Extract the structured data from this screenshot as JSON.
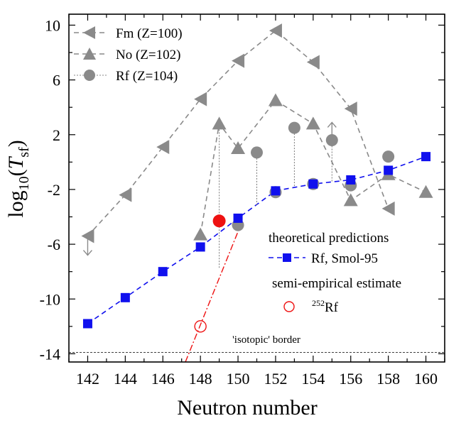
{
  "chart_data": {
    "type": "scatter",
    "xlabel": "Neutron number",
    "ylabel_main": "log",
    "ylabel_sub": "10",
    "ylabel_var": "T",
    "ylabel_var_sub": "sf",
    "xlim": [
      141,
      161
    ],
    "ylim": [
      -14.6,
      10.8
    ],
    "xticks": [
      142,
      144,
      146,
      148,
      150,
      152,
      154,
      156,
      158,
      160
    ],
    "yticks": [
      10,
      6,
      2,
      -2,
      -6,
      -10,
      -14
    ],
    "ytick_labels": [
      "10",
      "6",
      "2",
      "-2",
      "-6",
      "-10",
      "-14"
    ],
    "series": [
      {
        "name": "Fm (Z=100)",
        "marker": "left-triangle",
        "color": "#8a8a8a",
        "x": [
          142,
          144,
          146,
          148,
          150,
          152,
          154,
          156,
          158
        ],
        "y": [
          -5.4,
          -2.4,
          1.1,
          4.6,
          7.4,
          9.6,
          7.3,
          3.9,
          -3.4
        ]
      },
      {
        "name": "No (Z=102)",
        "marker": "triangle",
        "color": "#8a8a8a",
        "x": [
          148,
          149,
          150,
          152,
          154,
          156,
          158,
          160
        ],
        "y": [
          -5.3,
          2.8,
          1.0,
          4.5,
          2.8,
          -2.8,
          -0.9,
          -2.2
        ]
      },
      {
        "name": "Rf  (Z=104)",
        "marker": "circle",
        "color": "#8a8a8a",
        "x": [
          150,
          151,
          152,
          153,
          154,
          155,
          156,
          158
        ],
        "y": [
          -4.6,
          0.7,
          -2.2,
          2.5,
          -1.6,
          1.6,
          -1.7,
          0.4
        ]
      },
      {
        "name": "Rf, Smol-95",
        "marker": "square",
        "color": "#1010ee",
        "x": [
          142,
          144,
          146,
          148,
          150,
          152,
          154,
          156,
          158,
          160
        ],
        "y": [
          -11.8,
          -9.9,
          -8.0,
          -6.2,
          -4.1,
          -2.1,
          -1.6,
          -1.3,
          -0.6,
          0.4
        ]
      },
      {
        "name": "252Rf",
        "marker": "open-circle",
        "color": "#ee1111",
        "x": [
          148
        ],
        "y": [
          -12.0
        ]
      },
      {
        "name": "Rf observed",
        "marker": "filled-circle",
        "color": "#ee1111",
        "x": [
          149
        ],
        "y": [
          -4.3
        ]
      }
    ],
    "red_dashdot_line": {
      "x": [
        147.2,
        150.2
      ],
      "y": [
        -14.6,
        -4.4
      ]
    },
    "isotopic_border_y": -13.9,
    "dotted_connectors": [
      {
        "x": 149,
        "y_from": 2.8,
        "y_to": -4.3
      },
      {
        "x": 149,
        "y_from": -4.3,
        "y_to": -7.8
      },
      {
        "x": 151,
        "y_from": 0.7,
        "y_to": -3.2
      },
      {
        "x": 153,
        "y_from": 2.5,
        "y_to": -1.85
      },
      {
        "x": 155,
        "y_from": 1.6,
        "y_to": -1.45
      }
    ],
    "arrows": [
      {
        "x": 142,
        "y_from": -5.4,
        "y_to": -6.8,
        "direction": "down"
      },
      {
        "x": 155,
        "y_from": 1.6,
        "y_to": 2.9,
        "direction": "up"
      }
    ],
    "legend_top": {
      "entries": [
        "Fm (Z=100)",
        "No (Z=102)",
        "Rf  (Z=104)"
      ]
    },
    "legend_bottom": {
      "heading1": "theoretical predictions",
      "entry1": "Rf, Smol-95",
      "heading2": "semi-empirical estimate",
      "entry2_sup": "252",
      "entry2_main": "Rf"
    },
    "annotations": {
      "isotopic_border_label": "'isotopic' border"
    }
  }
}
